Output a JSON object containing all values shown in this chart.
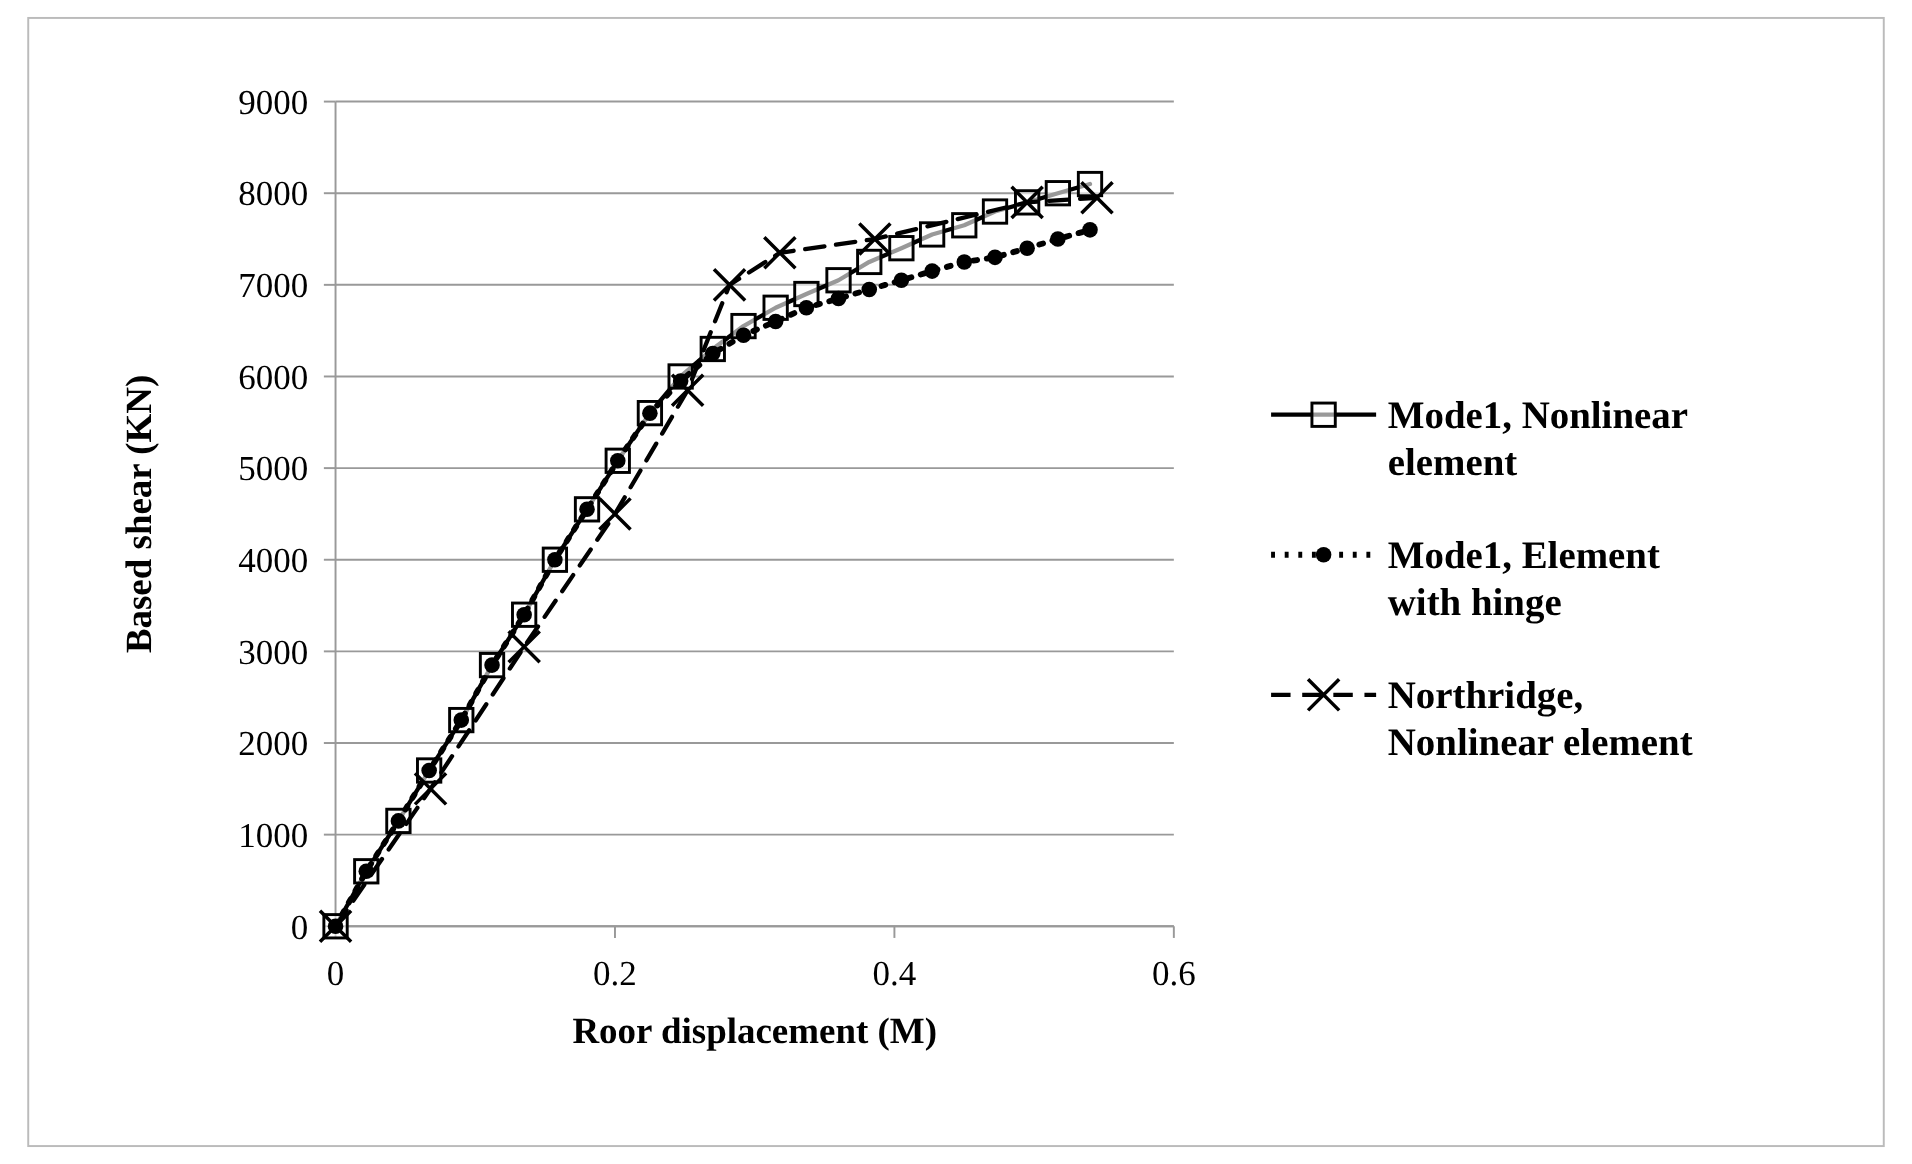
{
  "chart_data": {
    "type": "line",
    "xlabel": "Roor displacement (M)",
    "ylabel": "Based shear (KN)",
    "xlim": [
      0,
      0.6
    ],
    "xticks": [
      0,
      0.2,
      0.4,
      0.6
    ],
    "ylim": [
      0,
      9000
    ],
    "yticks": [
      0,
      1000,
      2000,
      3000,
      4000,
      5000,
      6000,
      7000,
      8000,
      9000
    ],
    "grid": "y",
    "legend": "right",
    "series": [
      {
        "name": "Mode1, Nonlinear element",
        "color": "#000000",
        "marker": "square",
        "line_style": "solid",
        "x": [
          0,
          0.022,
          0.045,
          0.067,
          0.09,
          0.112,
          0.135,
          0.157,
          0.18,
          0.202,
          0.225,
          0.247,
          0.27,
          0.292,
          0.315,
          0.337,
          0.36,
          0.382,
          0.405,
          0.427,
          0.45,
          0.472,
          0.495,
          0.517,
          0.54
        ],
        "values": [
          0,
          600,
          1150,
          1700,
          2250,
          2850,
          3400,
          4000,
          4550,
          5080,
          5600,
          6000,
          6300,
          6550,
          6750,
          6900,
          7050,
          7250,
          7400,
          7550,
          7650,
          7800,
          7900,
          8000,
          8100
        ]
      },
      {
        "name": "Mode1, Element with hinge",
        "color": "#000000",
        "marker": "circle",
        "line_style": "dotted",
        "x": [
          0,
          0.022,
          0.045,
          0.067,
          0.09,
          0.112,
          0.135,
          0.157,
          0.18,
          0.202,
          0.225,
          0.247,
          0.27,
          0.292,
          0.315,
          0.337,
          0.36,
          0.382,
          0.405,
          0.427,
          0.45,
          0.472,
          0.495,
          0.517,
          0.54
        ],
        "values": [
          0,
          600,
          1150,
          1700,
          2250,
          2850,
          3400,
          4000,
          4550,
          5080,
          5600,
          5950,
          6250,
          6450,
          6600,
          6750,
          6850,
          6950,
          7050,
          7150,
          7250,
          7300,
          7400,
          7500,
          7600
        ]
      },
      {
        "name": "Northridge, Nonlinear element",
        "color": "#000000",
        "marker": "cross",
        "line_style": "dashed",
        "x": [
          0,
          0.068,
          0.135,
          0.2,
          0.252,
          0.282,
          0.318,
          0.386,
          0.495,
          0.545
        ],
        "values": [
          0,
          1500,
          3050,
          4500,
          5850,
          7000,
          7350,
          7500,
          7900,
          7950
        ]
      }
    ]
  }
}
